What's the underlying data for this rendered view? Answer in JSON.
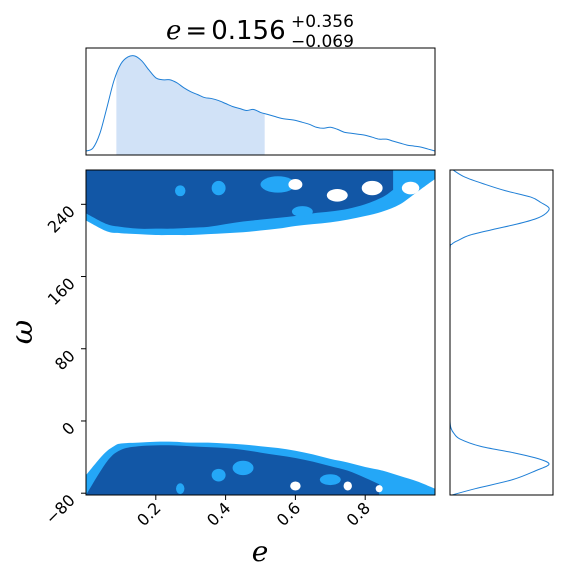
{
  "title": {
    "variable": "e",
    "equals": "=",
    "median": "0.156",
    "upper": "+0.356",
    "lower": "−0.069"
  },
  "chart_data": [
    {
      "type": "area",
      "panel": "marginal-e",
      "xlim": [
        0.0,
        1.0
      ],
      "y_ticks_shown": false,
      "credible_interval": [
        0.087,
        0.512
      ],
      "fill_color": "#d1e2f7",
      "line_color": "#1f7fd6",
      "series": [
        {
          "x": [
            0.0,
            0.02,
            0.04,
            0.06,
            0.08,
            0.1,
            0.12,
            0.14,
            0.16,
            0.18,
            0.2,
            0.22,
            0.24,
            0.26,
            0.28,
            0.3,
            0.32,
            0.34,
            0.36,
            0.38,
            0.4,
            0.42,
            0.44,
            0.46,
            0.48,
            0.5,
            0.52,
            0.54,
            0.56,
            0.58,
            0.6,
            0.62,
            0.64,
            0.66,
            0.68,
            0.7,
            0.72,
            0.74,
            0.76,
            0.78,
            0.8,
            0.82,
            0.84,
            0.86,
            0.88,
            0.9,
            0.92,
            0.94,
            0.96,
            0.98,
            1.0
          ],
          "values": [
            0.04,
            0.07,
            0.22,
            0.48,
            0.75,
            0.92,
            0.99,
            1.0,
            0.95,
            0.86,
            0.78,
            0.76,
            0.76,
            0.73,
            0.68,
            0.64,
            0.61,
            0.58,
            0.57,
            0.55,
            0.52,
            0.49,
            0.47,
            0.45,
            0.46,
            0.43,
            0.41,
            0.39,
            0.37,
            0.36,
            0.35,
            0.33,
            0.31,
            0.28,
            0.27,
            0.28,
            0.26,
            0.23,
            0.22,
            0.21,
            0.2,
            0.18,
            0.16,
            0.16,
            0.14,
            0.12,
            0.1,
            0.09,
            0.08,
            0.06,
            0.04
          ]
        }
      ]
    },
    {
      "type": "heatmap",
      "panel": "joint-e-omega",
      "xlabel": "e",
      "ylabel": "ω",
      "xlim": [
        0.0,
        1.0
      ],
      "ylim": [
        -82,
        278
      ],
      "x_ticks": [
        "0.2",
        "0.4",
        "0.6",
        "0.8"
      ],
      "x_tick_values": [
        0.2,
        0.4,
        0.6,
        0.8
      ],
      "y_ticks": [
        "−80",
        "0",
        "80",
        "160",
        "240"
      ],
      "y_tick_values": [
        -80,
        0,
        80,
        160,
        240
      ],
      "levels": [
        {
          "level": "inner",
          "color": "#1257a6"
        },
        {
          "level": "outer",
          "color": "#24a7f7"
        }
      ],
      "regions": {
        "upper_outer": {
          "x": [
            0.0,
            0.06,
            0.1,
            0.15,
            0.2,
            0.25,
            0.3,
            0.35,
            0.4,
            0.45,
            0.5,
            0.55,
            0.6,
            0.65,
            0.7,
            0.75,
            0.8,
            0.85,
            0.9,
            0.95,
            1.0
          ],
          "lower_y": [
            222,
            210,
            208,
            207,
            206,
            206,
            206,
            207,
            208,
            209,
            211,
            213,
            216,
            218,
            220,
            223,
            227,
            232,
            240,
            254,
            268
          ]
        },
        "upper_inner": {
          "x": [
            0.0,
            0.06,
            0.1,
            0.15,
            0.2,
            0.25,
            0.3,
            0.35,
            0.4,
            0.45,
            0.5,
            0.55,
            0.6,
            0.65,
            0.7,
            0.75,
            0.8,
            0.85,
            0.88
          ],
          "lower_y": [
            230,
            218,
            215,
            213,
            213,
            213,
            214,
            215,
            218,
            221,
            223,
            225,
            227,
            230,
            232,
            235,
            240,
            248,
            256
          ]
        },
        "lower_outer": {
          "x": [
            0.0,
            0.05,
            0.08,
            0.1,
            0.15,
            0.2,
            0.25,
            0.3,
            0.35,
            0.4,
            0.45,
            0.5,
            0.55,
            0.6,
            0.65,
            0.7,
            0.75,
            0.8,
            0.85,
            0.9,
            0.95,
            1.0
          ],
          "upper_y": [
            -60,
            -37,
            -28,
            -25,
            -24,
            -23,
            -23,
            -24,
            -24,
            -25,
            -26,
            -28,
            -30,
            -33,
            -37,
            -42,
            -46,
            -51,
            -55,
            -61,
            -67,
            -75
          ]
        },
        "lower_inner": {
          "x": [
            0.0,
            0.06,
            0.1,
            0.15,
            0.2,
            0.25,
            0.3,
            0.35,
            0.4,
            0.45,
            0.5,
            0.55,
            0.6,
            0.65,
            0.7,
            0.75,
            0.8,
            0.84
          ],
          "upper_y": [
            -82,
            -45,
            -32,
            -28,
            -27,
            -27,
            -28,
            -29,
            -30,
            -32,
            -35,
            -38,
            -41,
            -45,
            -50,
            -55,
            -63,
            -70
          ]
        }
      }
    },
    {
      "type": "line",
      "panel": "marginal-omega",
      "orientation": "horizontal",
      "ylim": [
        -82,
        278
      ],
      "x_ticks_shown": false,
      "line_color": "#1f7fd6",
      "series": [
        {
          "y": [
            -82,
            -75,
            -65,
            -55,
            -48,
            -42,
            -35,
            -28,
            -20,
            -14,
            -8,
            0,
            20,
            60,
            100,
            150,
            190,
            196,
            200,
            206,
            212,
            218,
            224,
            230,
            236,
            242,
            248,
            255,
            262,
            270,
            278
          ],
          "values": [
            0.02,
            0.25,
            0.62,
            0.85,
            0.98,
            0.88,
            0.62,
            0.3,
            0.1,
            0.04,
            0.01,
            0.0,
            0.0,
            0.0,
            0.0,
            0.0,
            0.0,
            0.02,
            0.08,
            0.2,
            0.42,
            0.66,
            0.85,
            0.95,
            0.98,
            0.9,
            0.8,
            0.55,
            0.35,
            0.15,
            0.03
          ]
        }
      ]
    }
  ]
}
